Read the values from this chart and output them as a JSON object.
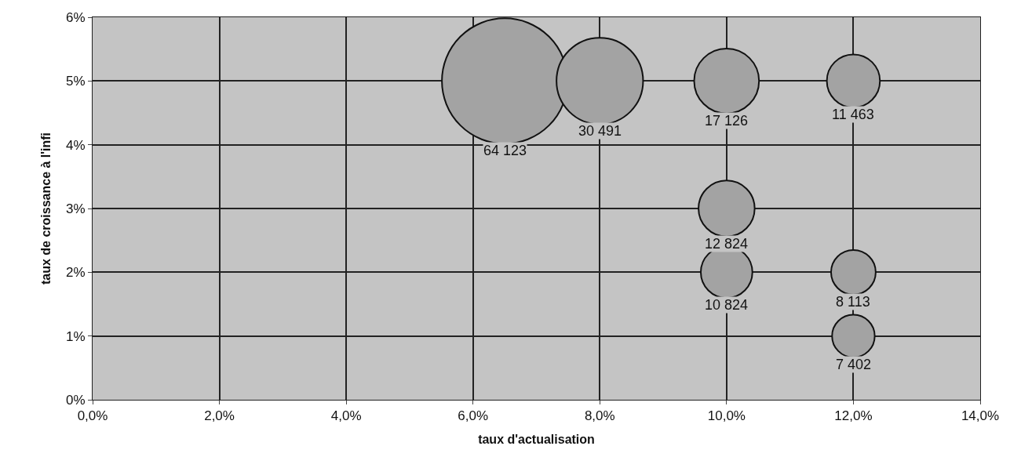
{
  "chart_data": {
    "type": "bubble",
    "xlabel": "taux d'actualisation",
    "ylabel": "taux de croissance à l'infi",
    "x": [
      6.5,
      8,
      10,
      12,
      10,
      10,
      12,
      12
    ],
    "values": [
      5,
      5,
      5,
      5,
      3,
      2,
      2,
      1
    ],
    "sizes": [
      1,
      0.4755,
      0.2671,
      0.1788,
      0.2,
      0.1688,
      0.1265,
      0.1154
    ],
    "annotations": [
      "64 123",
      "30 491",
      "17 126",
      "11 463",
      "12 824",
      "10 824",
      "8 113",
      "7 402"
    ],
    "color": "#a3a3a3",
    "xlim": [
      0,
      14
    ],
    "xticks": [
      {
        "value": 0,
        "label": "0,0%"
      },
      {
        "value": 2,
        "label": "2,0%"
      },
      {
        "value": 4,
        "label": "4,0%"
      },
      {
        "value": 6,
        "label": "6,0%"
      },
      {
        "value": 8,
        "label": "8,0%"
      },
      {
        "value": 10,
        "label": "10,0%"
      },
      {
        "value": 12,
        "label": "12,0%"
      },
      {
        "value": 14,
        "label": "14,0%"
      }
    ],
    "ylim": [
      0,
      6
    ],
    "yticks": [
      {
        "value": 0,
        "label": "0%"
      },
      {
        "value": 1,
        "label": "1%"
      },
      {
        "value": 2,
        "label": "2%"
      },
      {
        "value": 3,
        "label": "3%"
      },
      {
        "value": 4,
        "label": "4%"
      },
      {
        "value": 5,
        "label": "5%"
      },
      {
        "value": 6,
        "label": "6%"
      }
    ],
    "grid": true,
    "legend": false
  }
}
